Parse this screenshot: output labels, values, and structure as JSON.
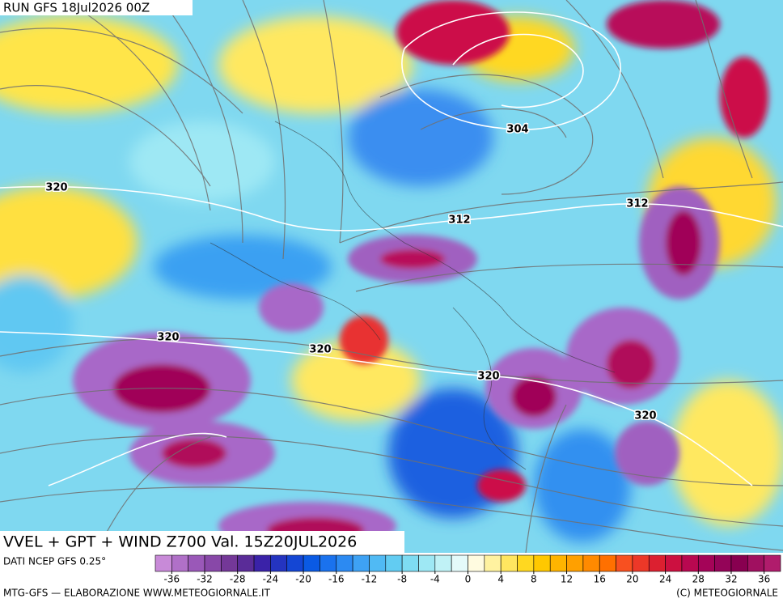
{
  "header": {
    "run": "RUN GFS 18Jul2026 00Z"
  },
  "map": {
    "contour_labels": [
      304,
      312,
      312,
      320,
      320,
      320,
      320,
      320
    ]
  },
  "title": "VVEL + GPT + WIND Z700 Val. 15Z20JUL2026",
  "colorbar": {
    "label": "DATI NCEP GFS 0.25°",
    "lim": [
      -38,
      38
    ],
    "ticks": [
      -36,
      -32,
      -28,
      -24,
      -20,
      -16,
      -12,
      -8,
      -4,
      0,
      4,
      8,
      12,
      16,
      20,
      24,
      28,
      32,
      36
    ],
    "colors": [
      "#c88ad8",
      "#b070c8",
      "#9a58b8",
      "#8848a8",
      "#743898",
      "#5a2c98",
      "#3a22a8",
      "#2434c0",
      "#1446d4",
      "#0a5ae4",
      "#1a72ee",
      "#2c8af2",
      "#3ea2f4",
      "#50baf4",
      "#62ccf2",
      "#7edcf2",
      "#9ee8f4",
      "#c0f2f6",
      "#e4fafa",
      "#fffbe0",
      "#fff2a0",
      "#ffe660",
      "#ffd820",
      "#ffc800",
      "#ffb400",
      "#ffa000",
      "#ff8a00",
      "#ff7000",
      "#f85020",
      "#ec3828",
      "#dc2030",
      "#cc1040",
      "#b80850",
      "#a40458",
      "#940458",
      "#880050",
      "#a01060",
      "#b01c6c"
    ]
  },
  "footer": {
    "left": "MTG-GFS — ELABORAZIONE WWW.METEOGIORNALE.IT",
    "right": "(C) METEOGIORNALE"
  }
}
